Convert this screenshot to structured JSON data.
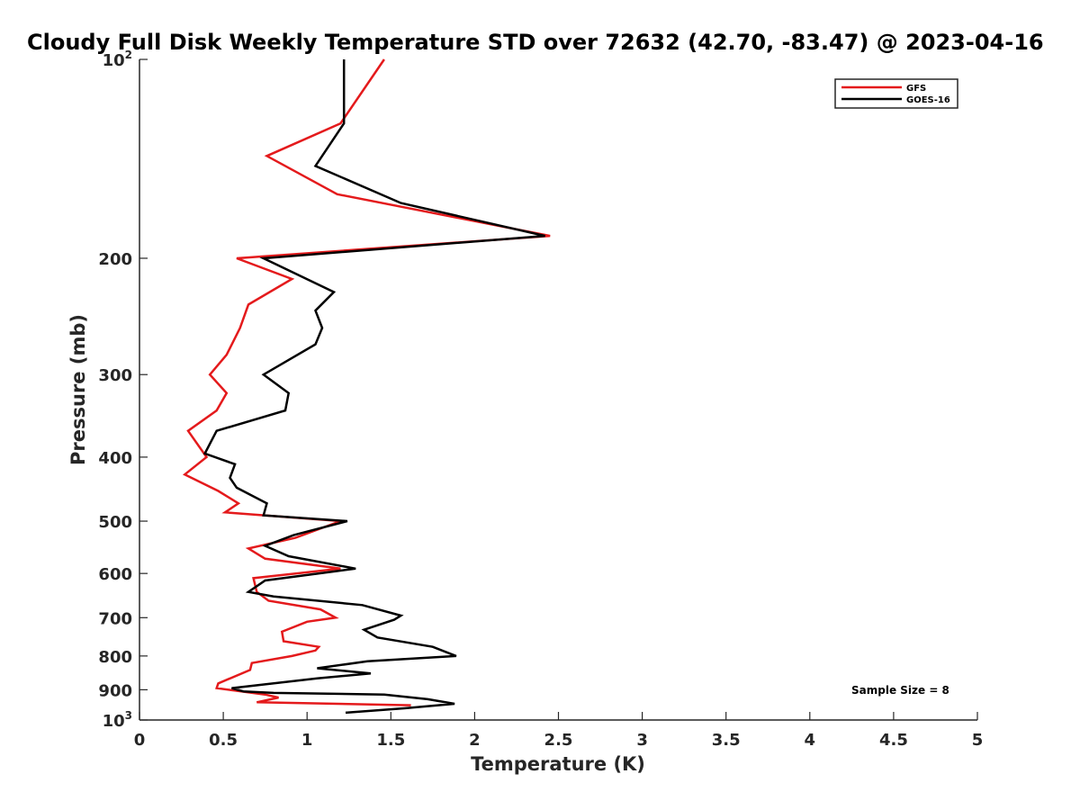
{
  "chart_data": {
    "type": "line",
    "title": "Cloudy Full Disk Weekly Temperature STD over 72632 (42.70, -83.47) @ 2023-04-16",
    "xlabel": "Temperature (K)",
    "ylabel": "Pressure (mb)",
    "xlim": [
      0,
      5
    ],
    "ylim": [
      100,
      1000
    ],
    "y_scale": "log",
    "y_reversed": true,
    "x_ticks": [
      0,
      0.5,
      1,
      1.5,
      2,
      2.5,
      3,
      3.5,
      4,
      4.5,
      5
    ],
    "x_tick_labels": [
      "0",
      "0.5",
      "1",
      "1.5",
      "2",
      "2.5",
      "3",
      "3.5",
      "4",
      "4.5",
      "5"
    ],
    "y_ticks": [
      {
        "value": 100,
        "base": "10",
        "exp": "2"
      },
      {
        "value": 200,
        "label": "200"
      },
      {
        "value": 300,
        "label": "300"
      },
      {
        "value": 400,
        "label": "400"
      },
      {
        "value": 500,
        "label": "500"
      },
      {
        "value": 600,
        "label": "600"
      },
      {
        "value": 700,
        "label": "700"
      },
      {
        "value": 800,
        "label": "800"
      },
      {
        "value": 900,
        "label": "900"
      },
      {
        "value": 1000,
        "base": "10",
        "exp": "3"
      }
    ],
    "grid": false,
    "legend_position": "top-right",
    "annotation": "Sample Size = 8",
    "series": [
      {
        "name": "GFS",
        "color": "#e41a1c",
        "points": [
          [
            1.46,
            100
          ],
          [
            1.2,
            125
          ],
          [
            0.76,
            140
          ],
          [
            1.18,
            160
          ],
          [
            2.45,
            185
          ],
          [
            0.58,
            200
          ],
          [
            0.91,
            215
          ],
          [
            0.65,
            235
          ],
          [
            0.6,
            255
          ],
          [
            0.52,
            280
          ],
          [
            0.42,
            300
          ],
          [
            0.52,
            320
          ],
          [
            0.46,
            340
          ],
          [
            0.29,
            365
          ],
          [
            0.4,
            400
          ],
          [
            0.27,
            425
          ],
          [
            0.47,
            450
          ],
          [
            0.59,
            470
          ],
          [
            0.51,
            485
          ],
          [
            1.2,
            500
          ],
          [
            0.93,
            530
          ],
          [
            0.65,
            550
          ],
          [
            0.75,
            570
          ],
          [
            1.2,
            590
          ],
          [
            0.68,
            610
          ],
          [
            0.7,
            640
          ],
          [
            0.77,
            660
          ],
          [
            1.08,
            680
          ],
          [
            1.17,
            700
          ],
          [
            1.0,
            710
          ],
          [
            0.85,
            735
          ],
          [
            0.86,
            760
          ],
          [
            1.07,
            775
          ],
          [
            1.05,
            785
          ],
          [
            0.91,
            800
          ],
          [
            0.67,
            820
          ],
          [
            0.66,
            840
          ],
          [
            0.47,
            880
          ],
          [
            0.46,
            895
          ],
          [
            0.75,
            915
          ],
          [
            0.83,
            925
          ],
          [
            0.7,
            940
          ],
          [
            1.62,
            950
          ]
        ]
      },
      {
        "name": "GOES-16",
        "color": "#000000",
        "points": [
          [
            1.22,
            100
          ],
          [
            1.22,
            125
          ],
          [
            1.05,
            145
          ],
          [
            1.56,
            165
          ],
          [
            2.42,
            185
          ],
          [
            0.74,
            200
          ],
          [
            1.16,
            225
          ],
          [
            1.05,
            240
          ],
          [
            1.09,
            255
          ],
          [
            1.05,
            270
          ],
          [
            0.74,
            300
          ],
          [
            0.89,
            320
          ],
          [
            0.87,
            340
          ],
          [
            0.46,
            365
          ],
          [
            0.39,
            395
          ],
          [
            0.57,
            410
          ],
          [
            0.54,
            430
          ],
          [
            0.58,
            445
          ],
          [
            0.76,
            470
          ],
          [
            0.74,
            490
          ],
          [
            1.24,
            500
          ],
          [
            0.92,
            525
          ],
          [
            0.75,
            545
          ],
          [
            0.89,
            565
          ],
          [
            1.29,
            590
          ],
          [
            0.75,
            615
          ],
          [
            0.65,
            640
          ],
          [
            0.8,
            650
          ],
          [
            1.33,
            670
          ],
          [
            1.56,
            695
          ],
          [
            1.52,
            705
          ],
          [
            1.34,
            730
          ],
          [
            1.42,
            750
          ],
          [
            1.75,
            775
          ],
          [
            1.89,
            800
          ],
          [
            1.36,
            815
          ],
          [
            1.06,
            835
          ],
          [
            1.38,
            850
          ],
          [
            1.06,
            865
          ],
          [
            0.55,
            895
          ],
          [
            0.62,
            905
          ],
          [
            0.8,
            910
          ],
          [
            1.46,
            915
          ],
          [
            1.72,
            930
          ],
          [
            1.88,
            945
          ],
          [
            1.58,
            960
          ],
          [
            1.23,
            975
          ]
        ]
      }
    ]
  }
}
